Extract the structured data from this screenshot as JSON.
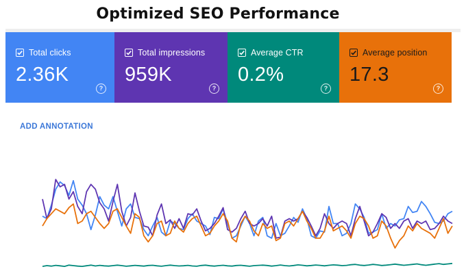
{
  "page": {
    "title": "Optimized SEO Performance"
  },
  "metrics": [
    {
      "label": "Total clicks",
      "value": "2.36K",
      "color": "#4285f4",
      "help_icon": "help-circle-icon"
    },
    {
      "label": "Total impressions",
      "value": "959K",
      "color": "#5e35b1",
      "help_icon": "help-circle-icon"
    },
    {
      "label": "Average CTR",
      "value": "0.2%",
      "color": "#00897b",
      "help_icon": "help-circle-icon"
    },
    {
      "label": "Average position",
      "value": "17.3",
      "color": "#e8710a",
      "help_icon": "help-circle-icon"
    }
  ],
  "help_glyph": "?",
  "annotation": {
    "label": "ADD ANNOTATION",
    "color": "#3c78d8"
  },
  "chart_data": {
    "type": "line",
    "title": "",
    "xlabel": "",
    "ylabel": "",
    "grid": false,
    "legend": "none",
    "series": [
      {
        "metric": "Total clicks",
        "color": "#4285f4",
        "values": [
          46,
          44,
          55,
          68,
          74,
          71,
          63,
          75,
          60,
          55,
          48,
          35,
          47,
          62,
          55,
          52,
          62,
          50,
          38,
          52,
          56,
          45,
          44,
          35,
          30,
          38,
          45,
          33,
          30,
          42,
          40,
          36,
          35,
          44,
          48,
          42,
          40,
          38,
          31,
          45,
          44,
          52,
          40,
          28,
          30,
          38,
          46,
          40,
          30,
          42,
          45,
          30,
          28,
          40,
          30,
          32,
          38,
          45,
          41,
          52,
          44,
          30,
          28,
          34,
          33,
          54,
          40,
          40,
          30,
          32,
          40,
          56,
          52,
          45,
          32,
          33,
          35,
          48,
          36,
          40,
          38,
          43,
          44,
          54,
          49,
          50,
          58,
          54,
          48,
          41,
          40,
          42,
          48,
          50
        ]
      },
      {
        "metric": "Total impressions",
        "color": "#5e35b1",
        "values": [
          60,
          44,
          52,
          76,
          70,
          72,
          60,
          66,
          54,
          48,
          66,
          72,
          68,
          57,
          52,
          42,
          58,
          72,
          50,
          38,
          45,
          65,
          50,
          38,
          37,
          30,
          47,
          56,
          40,
          43,
          36,
          44,
          36,
          48,
          47,
          52,
          42,
          34,
          36,
          40,
          46,
          53,
          35,
          33,
          36,
          44,
          50,
          40,
          38,
          40,
          44,
          38,
          46,
          28,
          29,
          42,
          44,
          42,
          44,
          50,
          45,
          38,
          30,
          36,
          48,
          40,
          36,
          40,
          42,
          40,
          30,
          44,
          54,
          42,
          30,
          33,
          40,
          48,
          45,
          36,
          40,
          36,
          42,
          44,
          36,
          42,
          40,
          42,
          35,
          36,
          40,
          46,
          42,
          40
        ]
      },
      {
        "metric": "Average position",
        "color": "#e8710a",
        "values": [
          38,
          44,
          48,
          52,
          50,
          48,
          53,
          56,
          40,
          42,
          48,
          50,
          45,
          40,
          36,
          40,
          50,
          52,
          45,
          38,
          32,
          48,
          45,
          30,
          25,
          30,
          40,
          42,
          30,
          32,
          42,
          36,
          33,
          40,
          44,
          46,
          38,
          30,
          32,
          38,
          42,
          48,
          42,
          28,
          25,
          40,
          46,
          42,
          34,
          30,
          40,
          36,
          38,
          26,
          28,
          40,
          42,
          38,
          44,
          50,
          42,
          36,
          28,
          28,
          34,
          46,
          34,
          36,
          38,
          34,
          28,
          40,
          46,
          44,
          38,
          28,
          30,
          42,
          38,
          28,
          20,
          26,
          30,
          38,
          34,
          40,
          36,
          34,
          32,
          28,
          36,
          44,
          32,
          38
        ]
      },
      {
        "metric": "Average CTR",
        "color": "#00897b",
        "values": [
          5,
          5.6,
          5.2,
          5.8,
          5.4,
          5,
          6,
          5.6,
          5.2,
          5,
          5.5,
          6,
          5.3,
          5.8,
          5.4,
          5.2,
          5.6,
          6,
          5.6,
          5.1,
          5.4,
          5.8,
          5.5,
          5.2,
          5.7,
          5.9,
          5.4,
          5.1,
          5.6,
          6,
          5.6,
          5.3,
          5.5,
          5.8,
          5.3,
          5.1,
          5.7,
          6,
          5.5,
          5.2,
          5.6,
          5.9,
          5.4,
          5.2,
          5.7,
          5.9,
          5.5,
          5.1,
          5.6,
          5.8,
          6,
          5.7,
          5.2,
          5.6,
          6.1,
          5.6,
          5.3,
          5.7,
          6.2,
          5.9,
          5.4,
          5.7,
          6.1,
          5.8,
          5.4,
          5.9,
          6.2,
          6,
          5.6,
          5.8,
          6.3,
          6.6,
          6,
          5.7,
          6.1,
          6.6,
          6.2,
          5.7,
          6,
          6.4,
          6.8,
          6.3,
          5.9,
          6.2,
          6.6,
          7,
          6.3,
          5.9,
          6.3,
          6.8,
          7.2,
          6.6,
          7,
          7.4
        ]
      }
    ]
  }
}
